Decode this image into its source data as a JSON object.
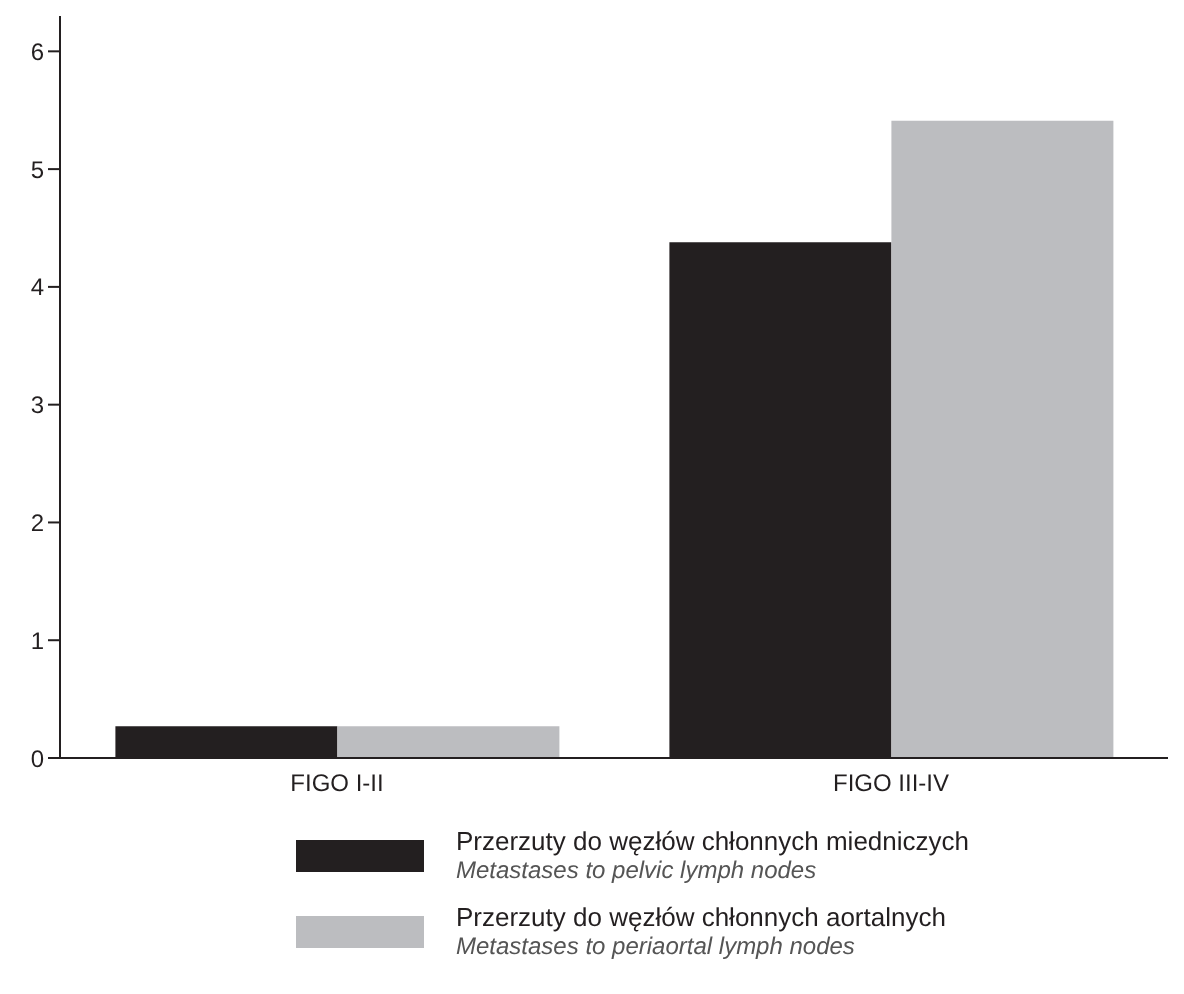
{
  "chart_data": {
    "type": "bar",
    "categories": [
      "FIGO I-II",
      "FIGO III-IV"
    ],
    "series": [
      {
        "name": "Przerzuty do węzłów chłonnych miedniczych\nMetastases to pelvic lymph nodes",
        "color": "#231f20",
        "values": [
          0.27,
          4.38
        ]
      },
      {
        "name": "Przerzuty do węzłów chłonnych aortalnych\nMetastases to periaortal lymph nodes",
        "color": "#bcbdc0",
        "values": [
          0.27,
          5.41
        ]
      }
    ],
    "ylim": [
      0,
      6.3
    ],
    "yticks": [
      0,
      1,
      2,
      3,
      4,
      5,
      6
    ],
    "grid": false,
    "legend": "bottom"
  }
}
